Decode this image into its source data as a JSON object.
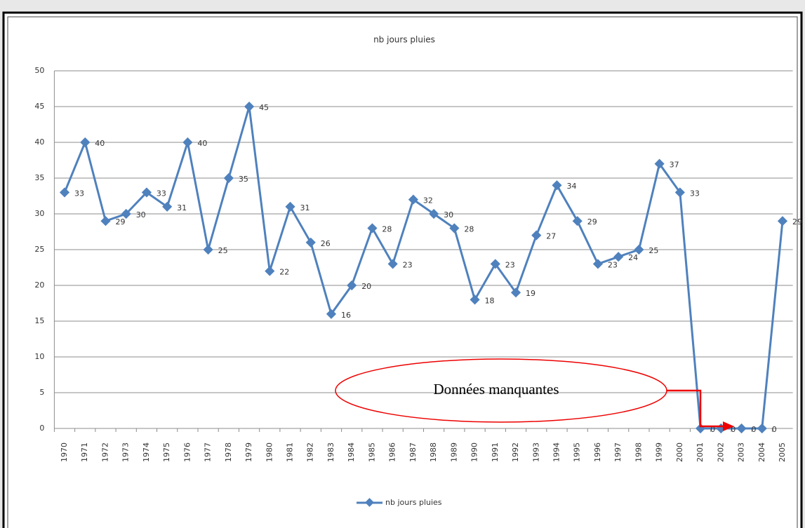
{
  "chart_data": {
    "type": "line",
    "title": "nb jours pluies",
    "categories": [
      "1970",
      "1971",
      "1972",
      "1973",
      "1974",
      "1975",
      "1976",
      "1977",
      "1978",
      "1979",
      "1980",
      "1981",
      "1982",
      "1983",
      "1984",
      "1985",
      "1986",
      "1987",
      "1988",
      "1989",
      "1990",
      "1991",
      "1992",
      "1993",
      "1994",
      "1995",
      "1996",
      "1997",
      "1998",
      "1999",
      "2000",
      "2001",
      "2002",
      "2003",
      "2004",
      "2005"
    ],
    "series": [
      {
        "name": "nb jours pluies",
        "color": "#4f81bd",
        "values": [
          33,
          40,
          29,
          30,
          33,
          31,
          40,
          25,
          35,
          45,
          22,
          31,
          26,
          16,
          20,
          28,
          23,
          32,
          30,
          28,
          18,
          23,
          19,
          27,
          34,
          29,
          23,
          24,
          25,
          37,
          33,
          0,
          0,
          0,
          0,
          29
        ]
      }
    ],
    "ylim": [
      0,
      50
    ],
    "yticks": [
      0,
      5,
      10,
      15,
      20,
      25,
      30,
      35,
      40,
      45,
      50
    ],
    "grid": true,
    "legend": "bottom",
    "annotation": "Données manquantes"
  }
}
